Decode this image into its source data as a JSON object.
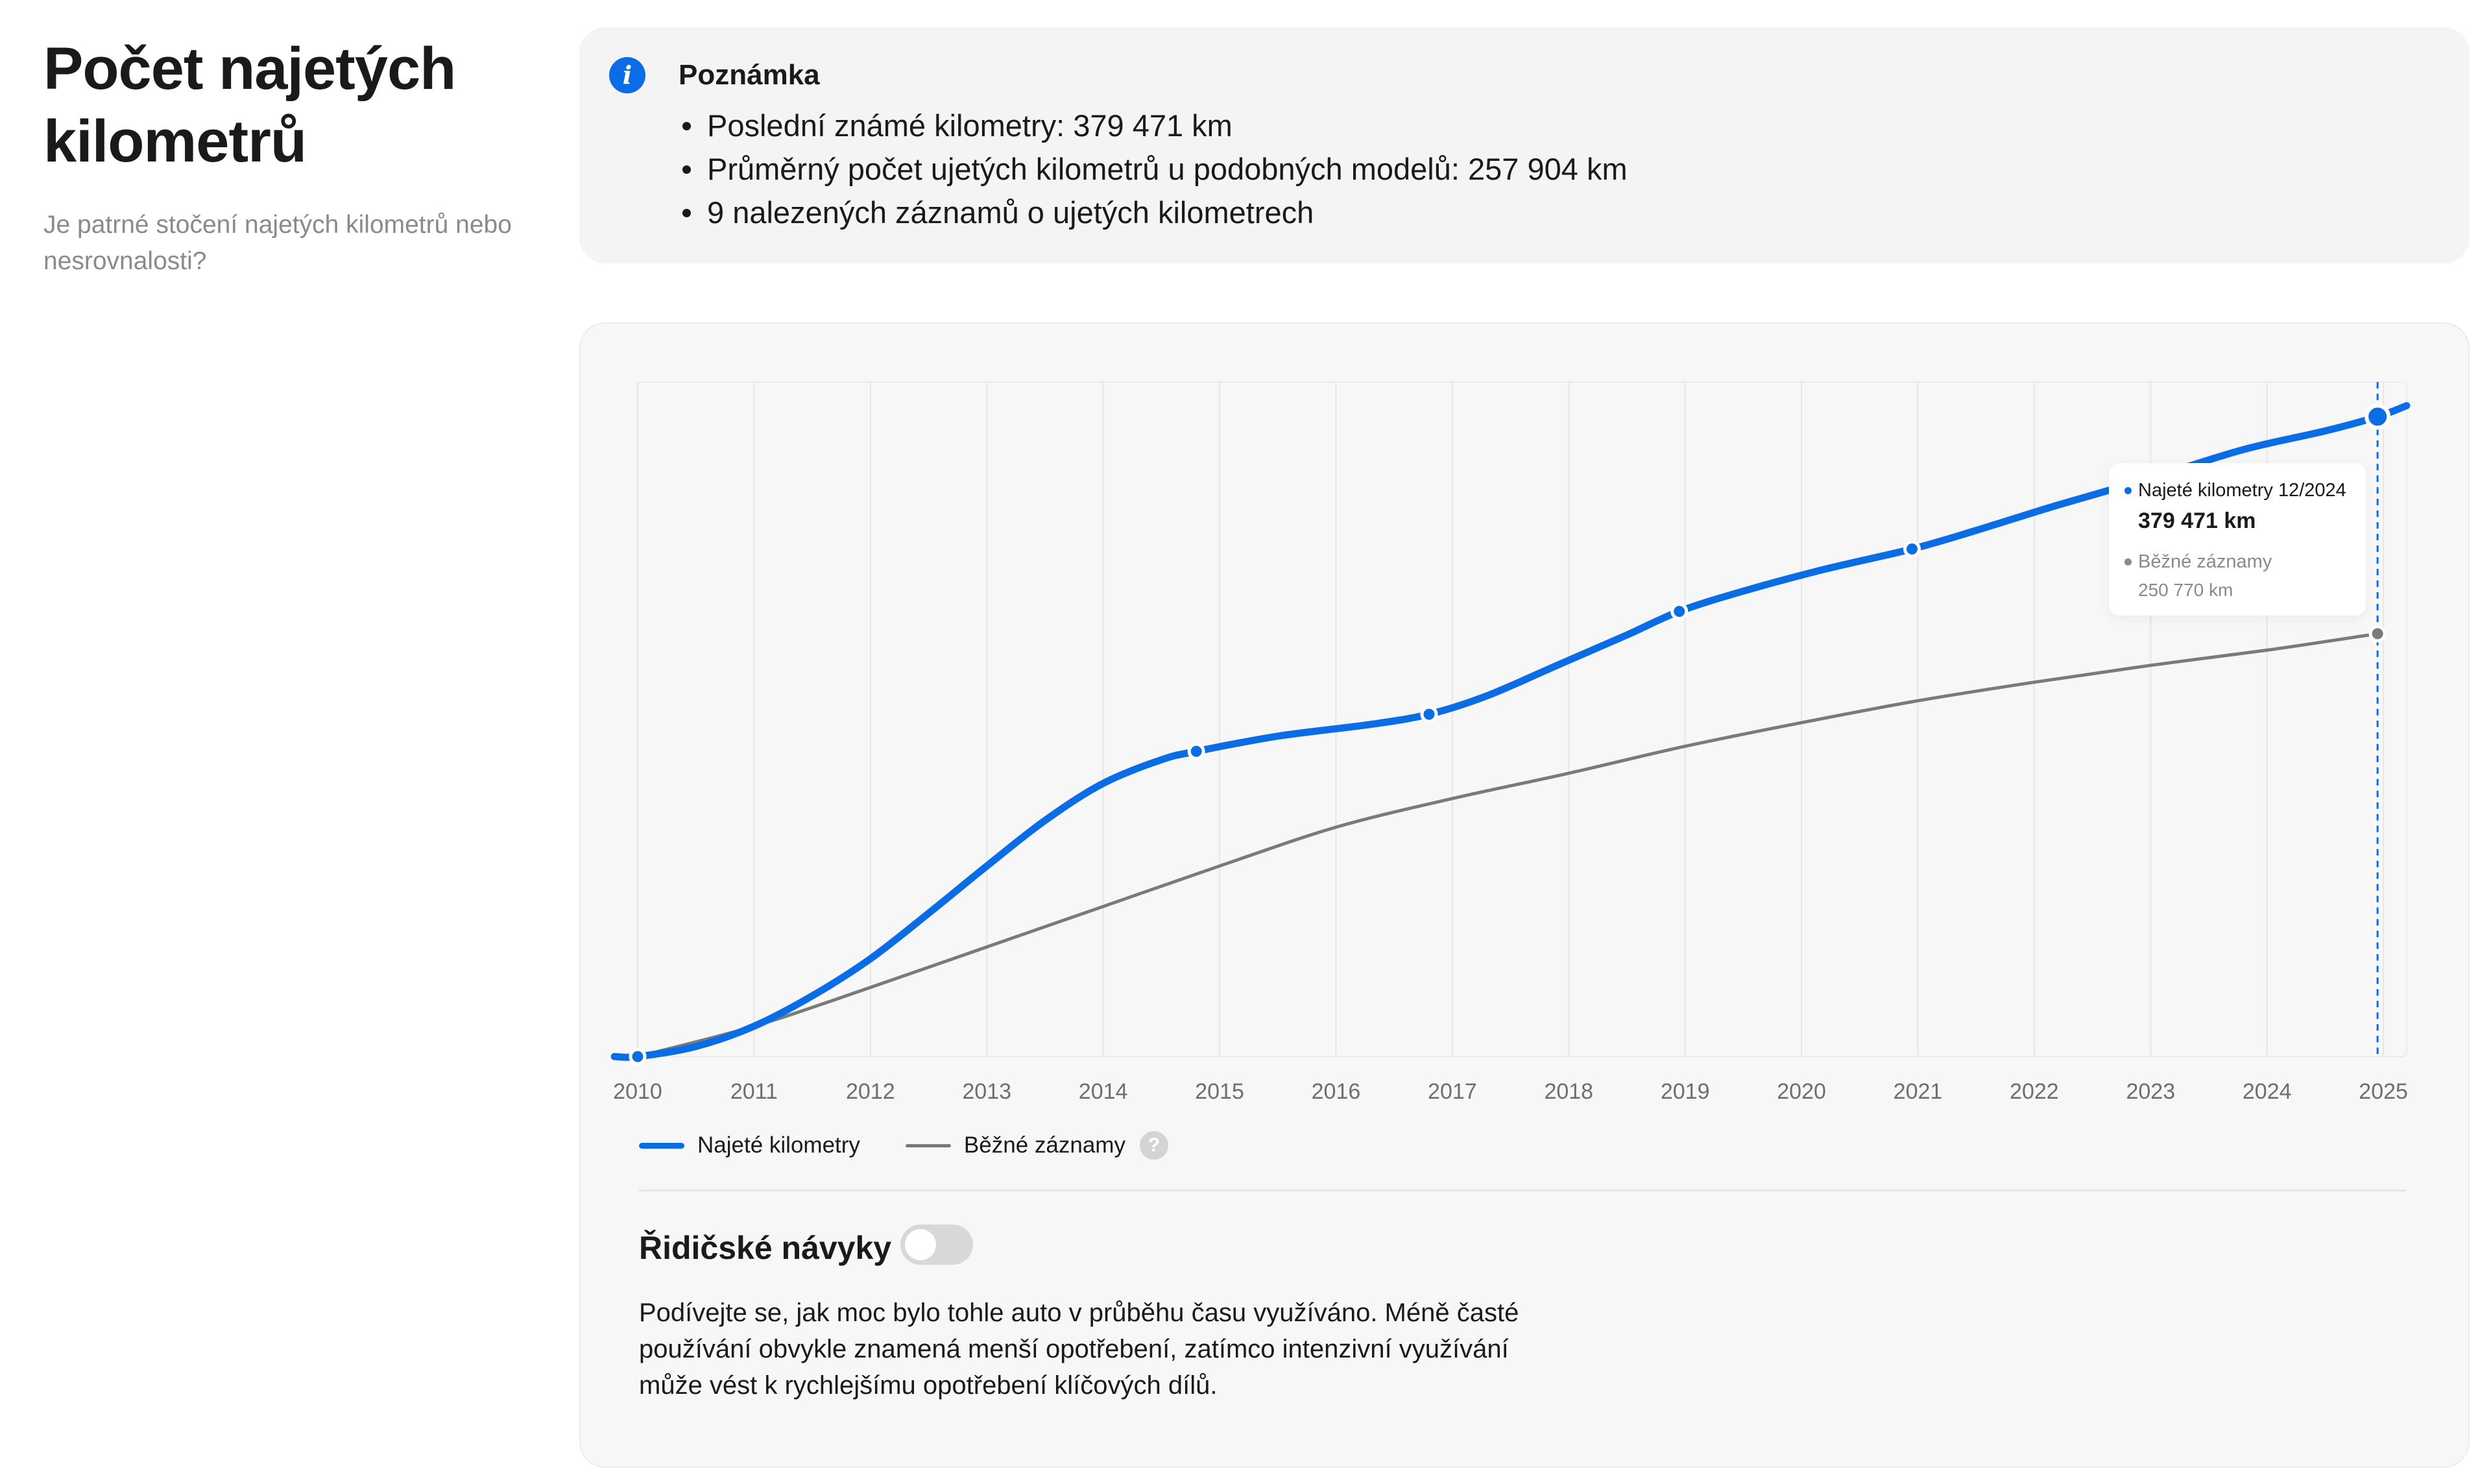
{
  "header": {
    "title": "Počet najetých kilometrů",
    "subtitle": "Je patrné stočení najetých kilometrů nebo nesrovnalosti?"
  },
  "note": {
    "icon": "info-icon",
    "icon_glyph": "i",
    "title": "Poznámka",
    "items": [
      "Poslední známé kilometry: 379 471 km",
      "Průměrný počet ujetých kilometrů u podobných modelů: 257 904 km",
      "9 nalezených záznamů o ujetých kilometrech"
    ]
  },
  "colors": {
    "accent": "#0a6de6",
    "grey_series": "#7a7a7a",
    "card_bg": "#f7f7f7"
  },
  "chart_data": {
    "type": "line",
    "x_ticks": [
      "2010",
      "2011",
      "2012",
      "2013",
      "2014",
      "2015",
      "2016",
      "2017",
      "2018",
      "2019",
      "2020",
      "2021",
      "2022",
      "2023",
      "2024",
      "2025"
    ],
    "xlim": [
      2010,
      2025.2
    ],
    "ylim": [
      0,
      400000
    ],
    "grid": true,
    "legend_position": "bottom-left",
    "series": [
      {
        "name": "Najeté kilometry",
        "color": "#0a6de6",
        "points": [
          [
            2010.0,
            0
          ],
          [
            2014.8,
            181000
          ],
          [
            2016.8,
            203000
          ],
          [
            2018.95,
            264000
          ],
          [
            2020.95,
            301000
          ],
          [
            2024.95,
            379471
          ]
        ],
        "curve": [
          [
            2009.8,
            0
          ],
          [
            2010.0,
            0
          ],
          [
            2010.5,
            6000
          ],
          [
            2011.0,
            18000
          ],
          [
            2011.5,
            36000
          ],
          [
            2012.0,
            58000
          ],
          [
            2012.5,
            85000
          ],
          [
            2013.0,
            113000
          ],
          [
            2013.5,
            140000
          ],
          [
            2014.0,
            162000
          ],
          [
            2014.5,
            176000
          ],
          [
            2014.8,
            181000
          ],
          [
            2015.5,
            190000
          ],
          [
            2016.3,
            197000
          ],
          [
            2016.8,
            203000
          ],
          [
            2017.3,
            214000
          ],
          [
            2017.9,
            232000
          ],
          [
            2018.5,
            250000
          ],
          [
            2018.95,
            264000
          ],
          [
            2019.5,
            276000
          ],
          [
            2020.2,
            289000
          ],
          [
            2020.95,
            301000
          ],
          [
            2021.5,
            312000
          ],
          [
            2022.2,
            327000
          ],
          [
            2023.0,
            343000
          ],
          [
            2023.8,
            360000
          ],
          [
            2024.5,
            371000
          ],
          [
            2024.95,
            379471
          ],
          [
            2025.2,
            386000
          ]
        ]
      },
      {
        "name": "Běžné záznamy",
        "color": "#7a7a7a",
        "points": [
          [
            2024.95,
            250770
          ]
        ],
        "curve": [
          [
            2010.0,
            0
          ],
          [
            2011.0,
            18000
          ],
          [
            2012.0,
            41000
          ],
          [
            2013.0,
            65000
          ],
          [
            2014.0,
            89000
          ],
          [
            2015.0,
            113000
          ],
          [
            2016.0,
            136000
          ],
          [
            2017.0,
            153000
          ],
          [
            2018.0,
            168000
          ],
          [
            2019.0,
            184000
          ],
          [
            2020.0,
            198000
          ],
          [
            2021.0,
            211000
          ],
          [
            2022.0,
            222000
          ],
          [
            2023.0,
            232000
          ],
          [
            2024.0,
            241000
          ],
          [
            2024.95,
            250770
          ]
        ]
      }
    ],
    "crosshair_x": 2024.95,
    "tooltip": {
      "series1_label": "Najeté kilometry 12/2024",
      "series1_value": "379 471 km",
      "series2_label": "Běžné záznamy",
      "series2_value": "250 770 km"
    },
    "legend": {
      "series1": "Najeté kilometry",
      "series2": "Běžné záznamy",
      "help_glyph": "?"
    }
  },
  "driving_habits": {
    "title": "Řidičské návyky",
    "toggle_on": false,
    "description": "Podívejte se, jak moc bylo tohle auto v průběhu času využíváno. Méně časté používání obvykle znamená menší opotřebení, zatímco intenzivní využívání může vést k rychlejšímu opotřebení klíčových dílů."
  }
}
